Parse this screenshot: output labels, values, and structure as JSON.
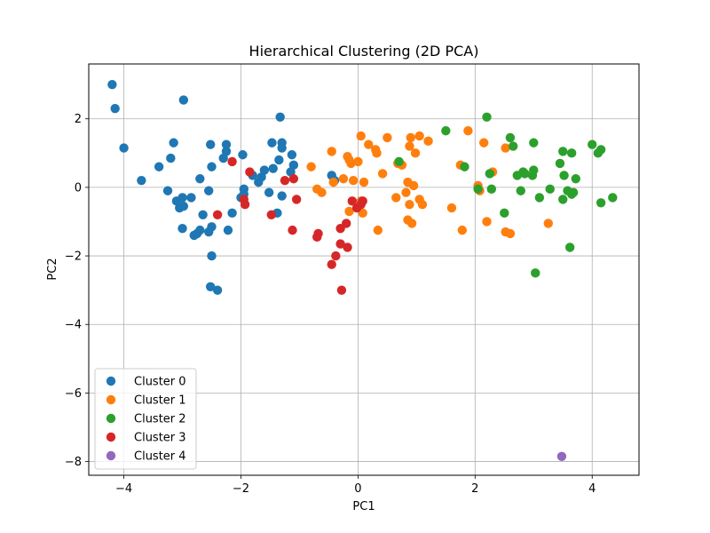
{
  "chart_data": {
    "type": "scatter",
    "title": "Hierarchical Clustering (2D PCA)",
    "xlabel": "PC1",
    "ylabel": "PC2",
    "xlim": [
      -4.6,
      4.8
    ],
    "ylim": [
      -8.4,
      3.6
    ],
    "xticks": [
      -4,
      -2,
      0,
      2,
      4
    ],
    "yticks": [
      -8,
      -6,
      -4,
      -2,
      0,
      2
    ],
    "xtick_labels": [
      "−4",
      "−2",
      "0",
      "2",
      "4"
    ],
    "ytick_labels": [
      "−8",
      "−6",
      "−4",
      "−2",
      "0",
      "2"
    ],
    "grid": true,
    "legend_position": "lower-left",
    "series": [
      {
        "name": "Cluster 0",
        "color": "#1f77b4",
        "points": [
          [
            -4.2,
            3.0
          ],
          [
            -4.15,
            2.3
          ],
          [
            -4.0,
            1.15
          ],
          [
            -3.7,
            0.2
          ],
          [
            -3.4,
            0.6
          ],
          [
            -3.25,
            -0.1
          ],
          [
            -3.2,
            0.85
          ],
          [
            -3.15,
            1.3
          ],
          [
            -3.1,
            -0.4
          ],
          [
            -3.05,
            -0.6
          ],
          [
            -3.0,
            -0.3
          ],
          [
            -2.98,
            -0.55
          ],
          [
            -3.0,
            -1.2
          ],
          [
            -2.98,
            2.55
          ],
          [
            -2.85,
            -0.3
          ],
          [
            -2.8,
            -1.4
          ],
          [
            -2.75,
            -1.35
          ],
          [
            -2.7,
            -1.25
          ],
          [
            -2.7,
            0.25
          ],
          [
            -2.65,
            -0.8
          ],
          [
            -2.55,
            -0.1
          ],
          [
            -2.55,
            -1.3
          ],
          [
            -2.5,
            -1.15
          ],
          [
            -2.5,
            0.6
          ],
          [
            -2.52,
            1.25
          ],
          [
            -2.5,
            -2.0
          ],
          [
            -2.52,
            -2.9
          ],
          [
            -2.4,
            -3.0
          ],
          [
            -2.3,
            0.85
          ],
          [
            -2.25,
            1.25
          ],
          [
            -2.25,
            1.05
          ],
          [
            -2.22,
            -1.25
          ],
          [
            -2.15,
            -0.75
          ],
          [
            -2.0,
            -0.3
          ],
          [
            -1.97,
            0.95
          ],
          [
            -1.95,
            -0.05
          ],
          [
            -1.95,
            -0.2
          ],
          [
            -1.8,
            0.35
          ],
          [
            -1.7,
            0.15
          ],
          [
            -1.65,
            0.3
          ],
          [
            -1.6,
            0.5
          ],
          [
            -1.52,
            -0.15
          ],
          [
            -1.47,
            1.3
          ],
          [
            -1.45,
            0.55
          ],
          [
            -1.38,
            -0.75
          ],
          [
            -1.35,
            0.8
          ],
          [
            -1.33,
            2.05
          ],
          [
            -1.3,
            1.3
          ],
          [
            -1.3,
            1.15
          ],
          [
            -1.3,
            -0.25
          ],
          [
            -1.15,
            0.45
          ],
          [
            -1.13,
            0.95
          ],
          [
            -1.1,
            0.65
          ],
          [
            -0.45,
            0.35
          ],
          [
            -0.4,
            0.2
          ]
        ]
      },
      {
        "name": "Cluster 1",
        "color": "#ff7f0e",
        "points": [
          [
            -0.8,
            0.6
          ],
          [
            -0.7,
            -0.05
          ],
          [
            -0.62,
            -0.15
          ],
          [
            -0.45,
            1.05
          ],
          [
            -0.42,
            0.15
          ],
          [
            -0.25,
            0.25
          ],
          [
            -0.18,
            0.9
          ],
          [
            -0.15,
            0.8
          ],
          [
            -0.12,
            0.7
          ],
          [
            -0.08,
            0.2
          ],
          [
            -0.15,
            -0.7
          ],
          [
            0.0,
            0.75
          ],
          [
            0.05,
            1.5
          ],
          [
            0.05,
            -0.4
          ],
          [
            0.08,
            -0.75
          ],
          [
            0.1,
            0.15
          ],
          [
            0.18,
            1.25
          ],
          [
            0.3,
            1.1
          ],
          [
            0.32,
            1.0
          ],
          [
            0.34,
            -1.25
          ],
          [
            0.42,
            0.4
          ],
          [
            0.5,
            1.45
          ],
          [
            0.65,
            -0.3
          ],
          [
            0.68,
            0.7
          ],
          [
            0.75,
            0.65
          ],
          [
            0.82,
            -0.15
          ],
          [
            0.85,
            0.15
          ],
          [
            0.85,
            -0.95
          ],
          [
            0.88,
            1.2
          ],
          [
            0.9,
            1.45
          ],
          [
            0.88,
            -0.5
          ],
          [
            0.92,
            -1.05
          ],
          [
            0.95,
            0.05
          ],
          [
            0.98,
            1.0
          ],
          [
            1.05,
            1.5
          ],
          [
            1.05,
            -0.35
          ],
          [
            1.1,
            -0.5
          ],
          [
            1.2,
            1.35
          ],
          [
            1.6,
            -0.6
          ],
          [
            1.75,
            0.65
          ],
          [
            1.78,
            -1.25
          ],
          [
            1.88,
            1.65
          ],
          [
            2.05,
            0.05
          ],
          [
            2.08,
            -0.1
          ],
          [
            2.15,
            1.3
          ],
          [
            2.2,
            -1.0
          ],
          [
            2.3,
            0.45
          ],
          [
            2.52,
            1.15
          ],
          [
            2.52,
            -1.3
          ],
          [
            2.6,
            -1.35
          ],
          [
            3.25,
            -1.05
          ]
        ]
      },
      {
        "name": "Cluster 2",
        "color": "#2ca02c",
        "points": [
          [
            0.7,
            0.75
          ],
          [
            1.5,
            1.65
          ],
          [
            1.82,
            0.6
          ],
          [
            2.05,
            -0.05
          ],
          [
            2.2,
            2.05
          ],
          [
            2.25,
            0.4
          ],
          [
            2.28,
            -0.05
          ],
          [
            2.5,
            -0.75
          ],
          [
            2.6,
            1.45
          ],
          [
            2.65,
            1.2
          ],
          [
            2.72,
            0.35
          ],
          [
            2.78,
            -0.1
          ],
          [
            2.82,
            0.45
          ],
          [
            2.85,
            0.4
          ],
          [
            2.98,
            0.35
          ],
          [
            3.0,
            0.5
          ],
          [
            3.0,
            1.3
          ],
          [
            3.03,
            -2.5
          ],
          [
            3.1,
            -0.3
          ],
          [
            3.28,
            -0.05
          ],
          [
            3.45,
            0.7
          ],
          [
            3.5,
            1.05
          ],
          [
            3.52,
            0.35
          ],
          [
            3.5,
            -0.35
          ],
          [
            3.58,
            -0.1
          ],
          [
            3.62,
            -1.75
          ],
          [
            3.65,
            1.0
          ],
          [
            3.65,
            -0.2
          ],
          [
            3.68,
            -0.15
          ],
          [
            3.72,
            0.25
          ],
          [
            4.0,
            1.25
          ],
          [
            4.1,
            1.0
          ],
          [
            4.15,
            1.1
          ],
          [
            4.15,
            -0.45
          ],
          [
            4.35,
            -0.3
          ]
        ]
      },
      {
        "name": "Cluster 3",
        "color": "#d62728",
        "points": [
          [
            -2.4,
            -0.8
          ],
          [
            -2.15,
            0.75
          ],
          [
            -1.95,
            -0.35
          ],
          [
            -1.93,
            -0.5
          ],
          [
            -1.85,
            0.45
          ],
          [
            -1.48,
            -0.8
          ],
          [
            -1.25,
            0.2
          ],
          [
            -1.1,
            0.25
          ],
          [
            -1.12,
            -1.25
          ],
          [
            -1.05,
            -0.35
          ],
          [
            -0.7,
            -1.45
          ],
          [
            -0.68,
            -1.35
          ],
          [
            -0.45,
            -2.25
          ],
          [
            -0.38,
            -2.0
          ],
          [
            -0.3,
            -1.65
          ],
          [
            -0.3,
            -1.2
          ],
          [
            -0.28,
            -3.0
          ],
          [
            -0.2,
            -1.05
          ],
          [
            -0.18,
            -1.75
          ],
          [
            -0.1,
            -0.4
          ],
          [
            -0.02,
            -0.6
          ],
          [
            0.05,
            -0.5
          ],
          [
            0.08,
            -0.4
          ]
        ]
      },
      {
        "name": "Cluster 4",
        "color": "#9467bd",
        "points": [
          [
            3.48,
            -7.85
          ]
        ]
      }
    ]
  }
}
